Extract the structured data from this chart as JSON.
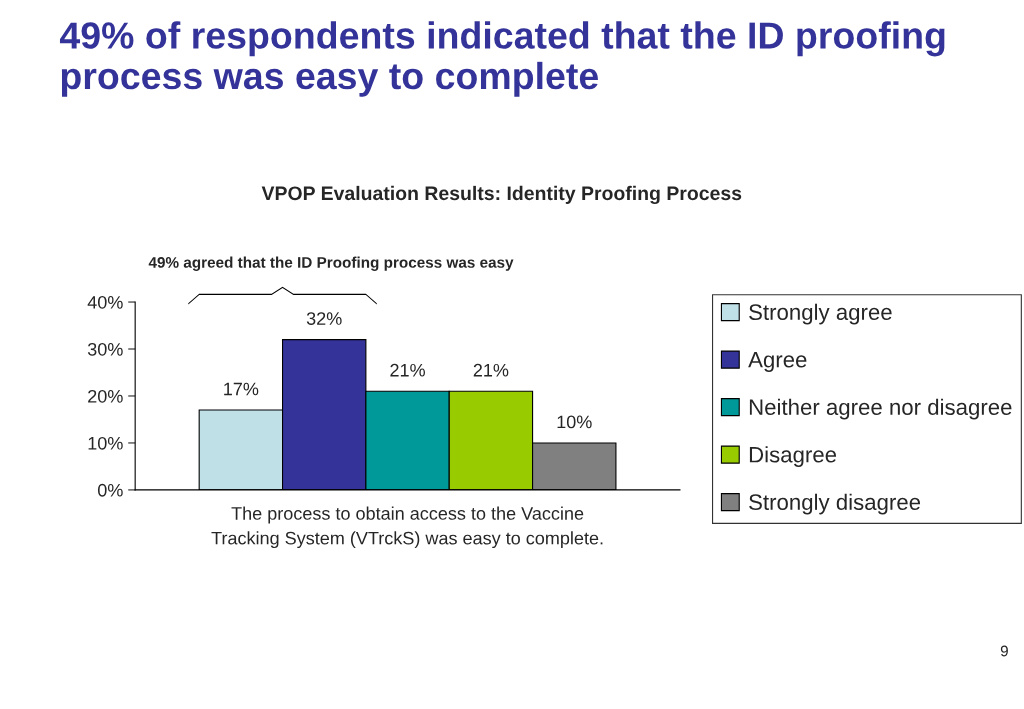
{
  "chart_data": {
    "type": "bar",
    "title": "49% of respondents indicated that the ID proofing process was easy to complete",
    "subtitle": "VPOP Evaluation Results: Identity Proofing Process",
    "categories": [
      "The process to obtain access to the Vaccine\nTracking System (VTrckS) was easy to complete."
    ],
    "series": [
      {
        "name": "Strongly agree",
        "color": "#c0e0e8",
        "values": [
          17
        ]
      },
      {
        "name": "Agree",
        "color": "#333399",
        "values": [
          32
        ]
      },
      {
        "name": "Neither agree nor disagree",
        "color": "#009999",
        "values": [
          21
        ]
      },
      {
        "name": "Disagree",
        "color": "#99cc00",
        "values": [
          21
        ]
      },
      {
        "name": "Strongly disagree",
        "color": "#808080",
        "values": [
          10
        ]
      }
    ],
    "ylim": [
      0,
      40
    ],
    "yticks": [
      {
        "value": 0,
        "label": "0%"
      },
      {
        "value": 10,
        "label": "10%"
      },
      {
        "value": 20,
        "label": "20%"
      },
      {
        "value": 30,
        "label": "30%"
      },
      {
        "value": 40,
        "label": "40%"
      }
    ],
    "value_labels": [
      [
        "17%"
      ],
      [
        "32%"
      ],
      [
        "21%"
      ],
      [
        "21%"
      ],
      [
        "10%"
      ]
    ],
    "annotations": [
      "49% agreed that the ID Proofing process was easy",
      "9"
    ],
    "legend": "right",
    "grid": false
  }
}
